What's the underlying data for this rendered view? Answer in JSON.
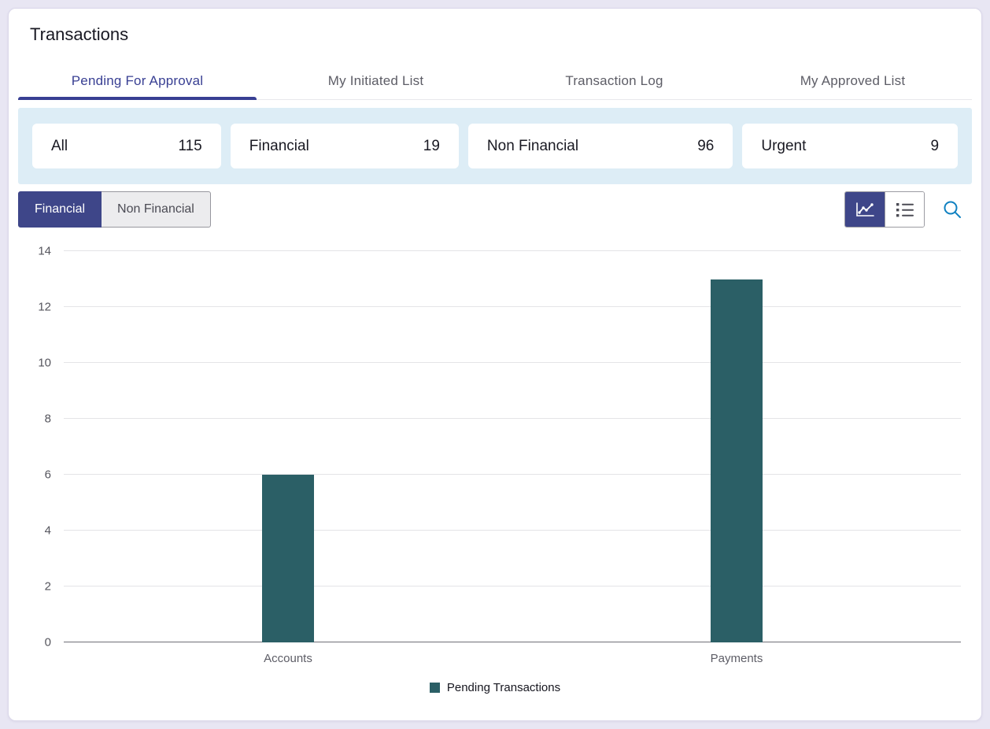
{
  "page": {
    "title": "Transactions"
  },
  "tabs": [
    {
      "label": "Pending For Approval",
      "active": true
    },
    {
      "label": "My Initiated List",
      "active": false
    },
    {
      "label": "Transaction Log",
      "active": false
    },
    {
      "label": "My Approved List",
      "active": false
    }
  ],
  "filters": [
    {
      "label": "All",
      "count": "115"
    },
    {
      "label": "Financial",
      "count": "19"
    },
    {
      "label": "Non Financial",
      "count": "96"
    },
    {
      "label": "Urgent",
      "count": "9"
    }
  ],
  "segmented": [
    {
      "label": "Financial",
      "active": true
    },
    {
      "label": "Non Financial",
      "active": false
    }
  ],
  "icons": {
    "chart_view": "line-chart-icon",
    "list_view": "list-icon",
    "search": "search-icon"
  },
  "colors": {
    "accent_indigo": "#3e4689",
    "tab_active": "#383f93",
    "filter_band_bg": "#ddedf6",
    "bar_teal": "#2b5f66",
    "search_icon_blue": "#1081c1",
    "page_background": "#e8e6f3"
  },
  "chart_data": {
    "type": "bar",
    "categories": [
      "Accounts",
      "Payments"
    ],
    "values": [
      6,
      13
    ],
    "series_name": "Pending Transactions",
    "legend_label": "Pending Transactions",
    "title": "",
    "xlabel": "",
    "ylabel": "",
    "ylim": [
      0,
      14
    ],
    "yticks": [
      0,
      2,
      4,
      6,
      8,
      10,
      12,
      14
    ],
    "bar_color": "#2b5f66",
    "grid": true,
    "legend_position": "bottom"
  }
}
